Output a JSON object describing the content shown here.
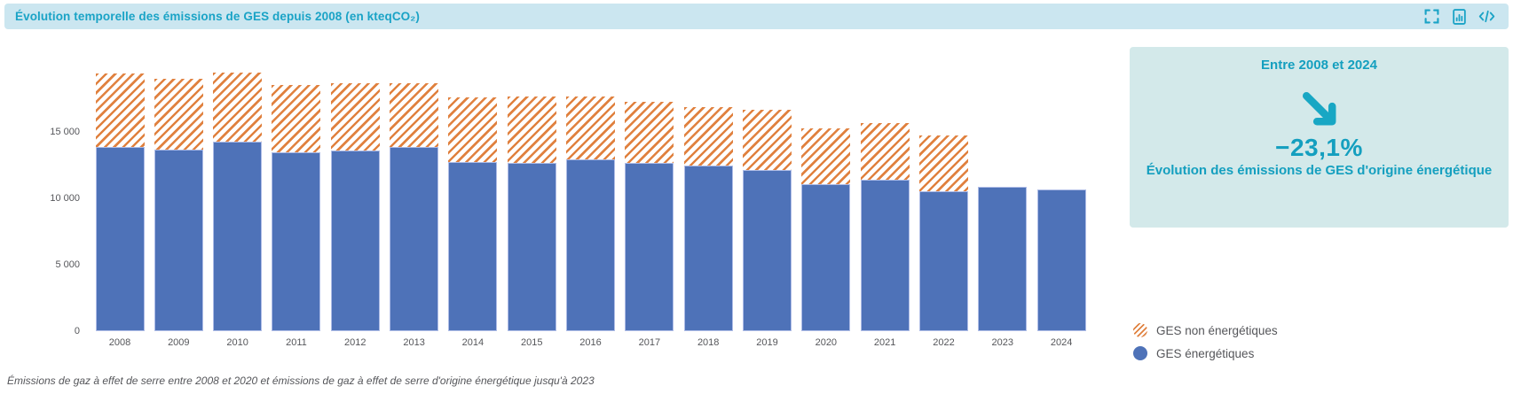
{
  "header": {
    "title": "Évolution temporelle des émissions de GES depuis 2008 (en kteqCO₂)",
    "tools": [
      {
        "name": "fullscreen-icon"
      },
      {
        "name": "chart-report-icon"
      },
      {
        "name": "embed-code-icon"
      }
    ]
  },
  "chart_data": {
    "type": "bar",
    "stacked": true,
    "title": "Évolution temporelle des émissions de GES depuis 2008 (en kteqCO₂)",
    "categories": [
      "2008",
      "2009",
      "2010",
      "2011",
      "2012",
      "2013",
      "2014",
      "2015",
      "2016",
      "2017",
      "2018",
      "2019",
      "2020",
      "2021",
      "2022",
      "2023",
      "2024"
    ],
    "series": [
      {
        "name": "GES énergétiques",
        "color": "#4e72b8",
        "pattern": "solid",
        "values": [
          13850,
          13650,
          14250,
          13450,
          13600,
          13850,
          12750,
          12650,
          12950,
          12650,
          12450,
          12150,
          11050,
          11400,
          10550,
          10850,
          10650
        ]
      },
      {
        "name": "GES non énergétiques",
        "color": "#e0813f",
        "pattern": "diagonal-hatch",
        "values": [
          5550,
          5350,
          5250,
          5100,
          5050,
          4850,
          4850,
          5000,
          4700,
          4600,
          4450,
          4550,
          4200,
          4250,
          4200,
          0,
          0
        ]
      }
    ],
    "ylim": [
      0,
      20000
    ],
    "yticks": [
      0,
      5000,
      10000,
      15000
    ],
    "ytick_labels": [
      "0",
      "5 000",
      "10 000",
      "15 000"
    ],
    "grid": false,
    "legend_position": "bottom-right"
  },
  "stat_panel": {
    "title": "Entre 2008 et 2024",
    "arrow": "down-right-arrow",
    "value": "−23,1%",
    "description": "Évolution des émissions de GES d'origine énergétique"
  },
  "legend": {
    "items": [
      {
        "label": "GES non énergétiques",
        "swatch": "orange-hatch"
      },
      {
        "label": "GES énergétiques",
        "swatch": "blue-solid"
      }
    ]
  },
  "caption": "Émissions de gaz à effet de serre entre 2008 et 2020 et émissions de gaz à effet de serre d'origine énergétique jusqu'à 2023",
  "colors": {
    "titlebar_bg": "#cbe6f0",
    "titlebar_text": "#1aa3c6",
    "panel_bg": "#d3e9ea",
    "panel_text": "#149fbf",
    "bar_blue": "#4e72b8",
    "bar_blue_border": "#aebce6",
    "hatch_orange": "#e0813f",
    "axis_text": "#55565a"
  }
}
